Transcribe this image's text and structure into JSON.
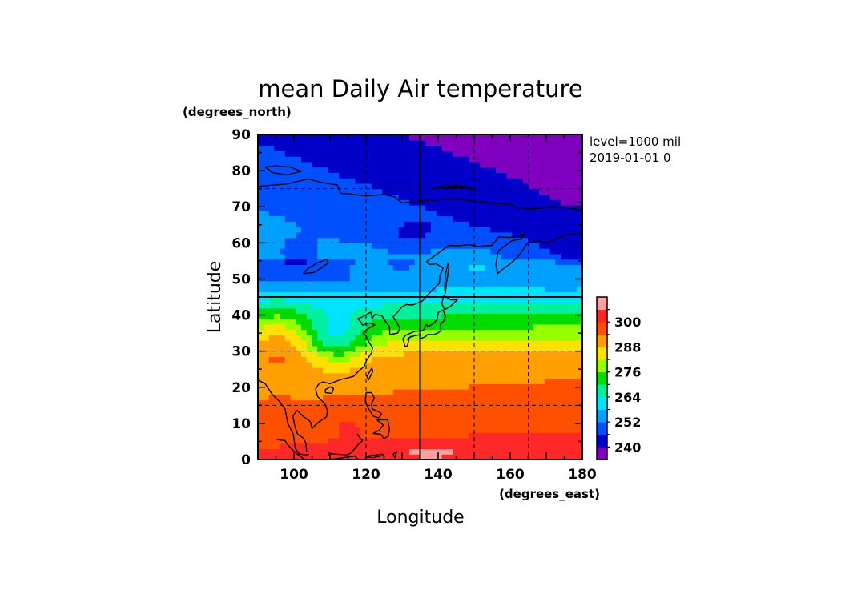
{
  "chart_data": {
    "type": "heatmap",
    "title": "mean Daily Air temperature",
    "xlabel": "Longitude",
    "ylabel": "Latitude",
    "x_unit": "(degrees_east)",
    "y_unit": "(degrees_north)",
    "xlim": [
      90,
      180
    ],
    "ylim": [
      0,
      90
    ],
    "x_ticks": [
      100,
      120,
      140,
      160,
      180
    ],
    "y_ticks": [
      0,
      10,
      20,
      30,
      40,
      50,
      60,
      70,
      80,
      90
    ],
    "x_tick_labels": [
      "100",
      "120",
      "140",
      "160",
      "180"
    ],
    "y_tick_labels": [
      "0",
      "10",
      "20",
      "30",
      "40",
      "50",
      "60",
      "70",
      "80",
      "90"
    ],
    "grid": true,
    "grid_lon": [
      105,
      120,
      150,
      165
    ],
    "grid_lat": [
      15,
      30,
      60,
      75
    ],
    "solid_lon": 135,
    "solid_lat": 45,
    "info_lines": [
      "level=1000 mil",
      "2019-01-01 0"
    ],
    "colorbar": {
      "levels": [
        234,
        240,
        246,
        252,
        258,
        264,
        270,
        276,
        282,
        288,
        294,
        300,
        306
      ],
      "colors": [
        "#8000c0",
        "#0000c8",
        "#0050ff",
        "#00a0ff",
        "#00e4ff",
        "#00f0a0",
        "#00dc00",
        "#96ff00",
        "#ffe100",
        "#ffa000",
        "#ff5000",
        "#ff2828",
        "#ffa0a0"
      ],
      "tick_labels": [
        "240",
        "252",
        "264",
        "276",
        "288",
        "300"
      ]
    },
    "temperature_bands": [
      {
        "lat_range": [
          88,
          90
        ],
        "value": 243
      },
      {
        "lat_range": [
          75,
          85
        ],
        "value": 246
      },
      {
        "lat_range": [
          65,
          75
        ],
        "value": 252
      },
      {
        "lat_range": [
          50,
          65
        ],
        "value": 255
      },
      {
        "lat_range": [
          40,
          50
        ],
        "value": 270
      },
      {
        "lat_range": [
          30,
          40
        ],
        "value": 282
      },
      {
        "lat_range": [
          10,
          28
        ],
        "value": 296
      },
      {
        "lat_range": [
          0,
          5
        ],
        "value": 302
      }
    ]
  }
}
